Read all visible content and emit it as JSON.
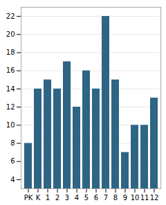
{
  "chart_data": {
    "type": "bar",
    "categories": [
      "PK",
      "K",
      "1",
      "2",
      "3",
      "4",
      "5",
      "6",
      "7",
      "8",
      "9",
      "10",
      "11",
      "12"
    ],
    "values": [
      8,
      14,
      15,
      14,
      17,
      12,
      16,
      14,
      22,
      15,
      7,
      10,
      10,
      13
    ],
    "color": "#2e6484",
    "ylim": [
      3,
      23
    ],
    "yticks": [
      4,
      6,
      8,
      10,
      12,
      14,
      16,
      18,
      20,
      22
    ],
    "grid": true
  }
}
